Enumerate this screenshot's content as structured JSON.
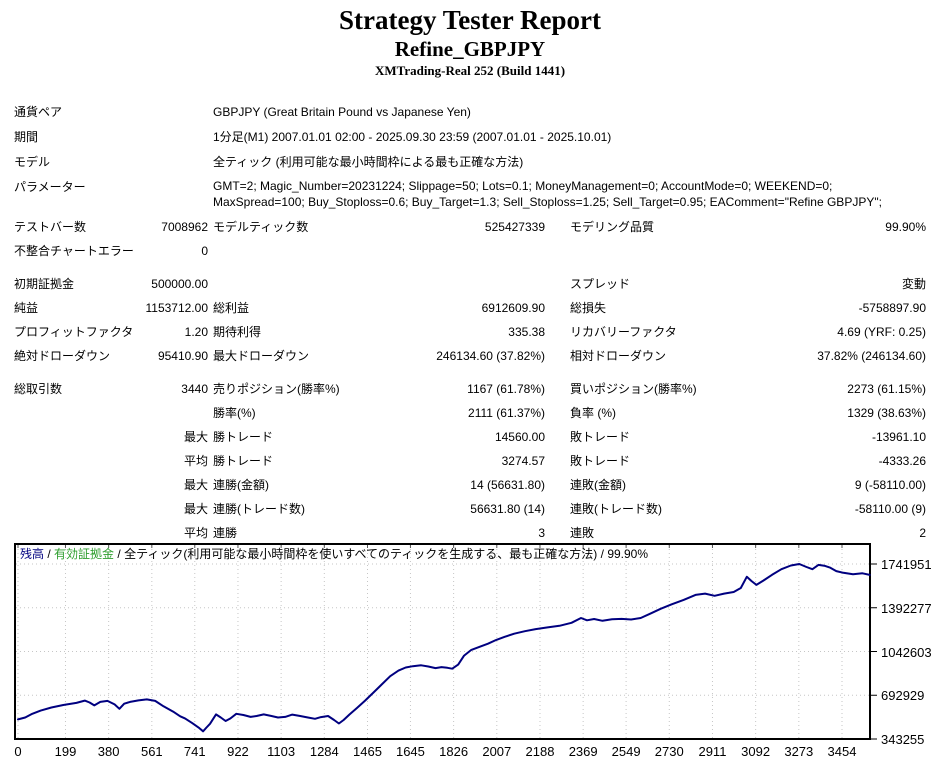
{
  "header": {
    "title": "Strategy Tester Report",
    "strategy": "Refine_GBPJPY",
    "broker": "XMTrading-Real 252 (Build 1441)"
  },
  "stats": {
    "rows": [
      {
        "type": "info",
        "label": "通貨ペア",
        "text": "GBPJPY (Great Britain Pound vs Japanese Yen)"
      },
      {
        "type": "info",
        "label": "期間",
        "text": "1分足(M1) 2007.01.01 02:00 - 2025.09.30 23:59 (2007.01.01 - 2025.10.01)"
      },
      {
        "type": "info",
        "label": "モデル",
        "text": "全ティック (利用可能な最小時間枠による最も正確な方法)"
      },
      {
        "type": "info",
        "tall": true,
        "label": "パラメーター",
        "text": "GMT=2; Magic_Number=20231224; Slippage=50; Lots=0.1; MoneyManagement=0; AccountMode=0; WEEKEND=0; MaxSpread=100; Buy_Stoploss=0.6; Buy_Target=1.3; Sell_Stoploss=1.25; Sell_Target=0.95; EAComment=\"Refine GBPJPY\";"
      },
      {
        "type": "stat",
        "l1": "テストバー数",
        "v1": "7008962",
        "l2": "モデルティック数",
        "v2": "525427339",
        "l3": "モデリング品質",
        "v3": "99.90%"
      },
      {
        "type": "stat",
        "l1": "不整合チャートエラー",
        "v1": "0",
        "l2": "",
        "v2": "",
        "l3": "",
        "v3": ""
      },
      {
        "type": "gap"
      },
      {
        "type": "stat",
        "l1": "初期証拠金",
        "v1": "500000.00",
        "l2": "",
        "v2": "",
        "l3": "スプレッド",
        "v3": "変動"
      },
      {
        "type": "stat",
        "l1": "純益",
        "v1": "1153712.00",
        "l2": "総利益",
        "v2": "6912609.90",
        "l3": "総損失",
        "v3": "-5758897.90"
      },
      {
        "type": "stat",
        "l1": "プロフィットファクタ",
        "v1": "1.20",
        "l2": "期待利得",
        "v2": "335.38",
        "l3": "リカバリーファクタ",
        "v3": "4.69 (YRF: 0.25)"
      },
      {
        "type": "stat",
        "l1": "絶対ドローダウン",
        "v1": "95410.90",
        "l2": "最大ドローダウン",
        "v2": "246134.60 (37.82%)",
        "l3": "相対ドローダウン",
        "v3": "37.82% (246134.60)"
      },
      {
        "type": "gap"
      },
      {
        "type": "stat",
        "l1": "総取引数",
        "v1": "3440",
        "l2": "売りポジション(勝率%)",
        "v2": "1167 (61.78%)",
        "l3": "買いポジション(勝率%)",
        "v3": "2273 (61.15%)"
      },
      {
        "type": "stat",
        "l1": "",
        "v1": "",
        "l2": "勝率(%)",
        "v2": "2111 (61.37%)",
        "l3": "負率 (%)",
        "v3": "1329 (38.63%)"
      },
      {
        "type": "stat",
        "l1": "",
        "v1": "最大",
        "l2": "勝トレード",
        "v2": "14560.00",
        "l3": "敗トレード",
        "v3": "-13961.10"
      },
      {
        "type": "stat",
        "l1": "",
        "v1": "平均",
        "l2": "勝トレード",
        "v2": "3274.57",
        "l3": "敗トレード",
        "v3": "-4333.26"
      },
      {
        "type": "stat",
        "l1": "",
        "v1": "最大",
        "l2": "連勝(金額)",
        "v2": "14 (56631.80)",
        "l3": "連敗(金額)",
        "v3": "9 (-58110.00)"
      },
      {
        "type": "stat",
        "l1": "",
        "v1": "最大",
        "l2": "連勝(トレード数)",
        "v2": "56631.80 (14)",
        "l3": "連敗(トレード数)",
        "v3": "-58110.00 (9)"
      },
      {
        "type": "stat",
        "l1": "",
        "v1": "平均",
        "l2": "連勝",
        "v2": "3",
        "l3": "連敗",
        "v3": "2"
      }
    ]
  },
  "chart_data": {
    "type": "line",
    "legend": {
      "balance_label": "残高",
      "equity_label": "有効証拠金",
      "model_label": "全ティック(利用可能な最小時間枠を使いすべてのティックを生成する、最も正確な方法)",
      "quality": "99.90%",
      "separator": " / "
    },
    "balance_color": "#000080",
    "equity_color": "#2e9e2e",
    "grid_color": "#c6c6c6",
    "grid": "dotted",
    "x_ticks": [
      0,
      199,
      380,
      561,
      741,
      922,
      1103,
      1284,
      1465,
      1645,
      1826,
      2007,
      2188,
      2369,
      2549,
      2730,
      2911,
      3092,
      3273,
      3454
    ],
    "y_ticks": [
      1741951,
      1392277,
      1042603,
      692929,
      343255
    ],
    "x_range": [
      0,
      3570
    ],
    "y_range": [
      343255,
      1741951
    ],
    "series": [
      {
        "name": "残高",
        "color": "#000080",
        "points": [
          [
            0,
            500000
          ],
          [
            30,
            515000
          ],
          [
            60,
            545000
          ],
          [
            95,
            570000
          ],
          [
            140,
            595000
          ],
          [
            190,
            615000
          ],
          [
            245,
            632000
          ],
          [
            280,
            650000
          ],
          [
            300,
            635000
          ],
          [
            320,
            612000
          ],
          [
            345,
            640000
          ],
          [
            375,
            648000
          ],
          [
            405,
            620000
          ],
          [
            425,
            585000
          ],
          [
            445,
            625000
          ],
          [
            470,
            640000
          ],
          [
            505,
            652000
          ],
          [
            540,
            660000
          ],
          [
            575,
            648000
          ],
          [
            610,
            605000
          ],
          [
            650,
            562000
          ],
          [
            680,
            525000
          ],
          [
            700,
            508000
          ],
          [
            730,
            470000
          ],
          [
            760,
            430000
          ],
          [
            776,
            405000
          ],
          [
            790,
            435000
          ],
          [
            805,
            465000
          ],
          [
            830,
            540000
          ],
          [
            850,
            515000
          ],
          [
            870,
            487000
          ],
          [
            890,
            507000
          ],
          [
            915,
            545000
          ],
          [
            945,
            535000
          ],
          [
            975,
            520000
          ],
          [
            1000,
            527000
          ],
          [
            1030,
            540000
          ],
          [
            1060,
            528000
          ],
          [
            1090,
            515000
          ],
          [
            1120,
            520000
          ],
          [
            1150,
            538000
          ],
          [
            1180,
            528000
          ],
          [
            1215,
            515000
          ],
          [
            1245,
            505000
          ],
          [
            1270,
            518000
          ],
          [
            1300,
            527000
          ],
          [
            1325,
            495000
          ],
          [
            1345,
            467000
          ],
          [
            1365,
            495000
          ],
          [
            1390,
            540000
          ],
          [
            1420,
            590000
          ],
          [
            1455,
            650000
          ],
          [
            1490,
            715000
          ],
          [
            1525,
            780000
          ],
          [
            1560,
            845000
          ],
          [
            1595,
            890000
          ],
          [
            1625,
            915000
          ],
          [
            1655,
            925000
          ],
          [
            1690,
            932000
          ],
          [
            1720,
            923000
          ],
          [
            1750,
            910000
          ],
          [
            1775,
            918000
          ],
          [
            1800,
            912000
          ],
          [
            1820,
            905000
          ],
          [
            1845,
            938000
          ],
          [
            1870,
            1010000
          ],
          [
            1900,
            1055000
          ],
          [
            1935,
            1080000
          ],
          [
            1970,
            1105000
          ],
          [
            2005,
            1135000
          ],
          [
            2040,
            1160000
          ],
          [
            2080,
            1185000
          ],
          [
            2125,
            1205000
          ],
          [
            2170,
            1222000
          ],
          [
            2220,
            1235000
          ],
          [
            2270,
            1248000
          ],
          [
            2320,
            1272000
          ],
          [
            2360,
            1310000
          ],
          [
            2385,
            1292000
          ],
          [
            2415,
            1302000
          ],
          [
            2450,
            1288000
          ],
          [
            2490,
            1300000
          ],
          [
            2530,
            1303000
          ],
          [
            2570,
            1298000
          ],
          [
            2610,
            1310000
          ],
          [
            2650,
            1345000
          ],
          [
            2695,
            1385000
          ],
          [
            2740,
            1420000
          ],
          [
            2790,
            1455000
          ],
          [
            2840,
            1495000
          ],
          [
            2880,
            1505000
          ],
          [
            2920,
            1488000
          ],
          [
            2960,
            1505000
          ],
          [
            3000,
            1518000
          ],
          [
            3030,
            1550000
          ],
          [
            3055,
            1640000
          ],
          [
            3075,
            1605000
          ],
          [
            3095,
            1575000
          ],
          [
            3125,
            1610000
          ],
          [
            3160,
            1655000
          ],
          [
            3200,
            1700000
          ],
          [
            3240,
            1730000
          ],
          [
            3275,
            1742000
          ],
          [
            3305,
            1718000
          ],
          [
            3330,
            1700000
          ],
          [
            3355,
            1735000
          ],
          [
            3380,
            1728000
          ],
          [
            3405,
            1712000
          ],
          [
            3430,
            1685000
          ],
          [
            3460,
            1672000
          ],
          [
            3500,
            1660000
          ],
          [
            3540,
            1668000
          ],
          [
            3570,
            1655000
          ]
        ]
      }
    ]
  }
}
